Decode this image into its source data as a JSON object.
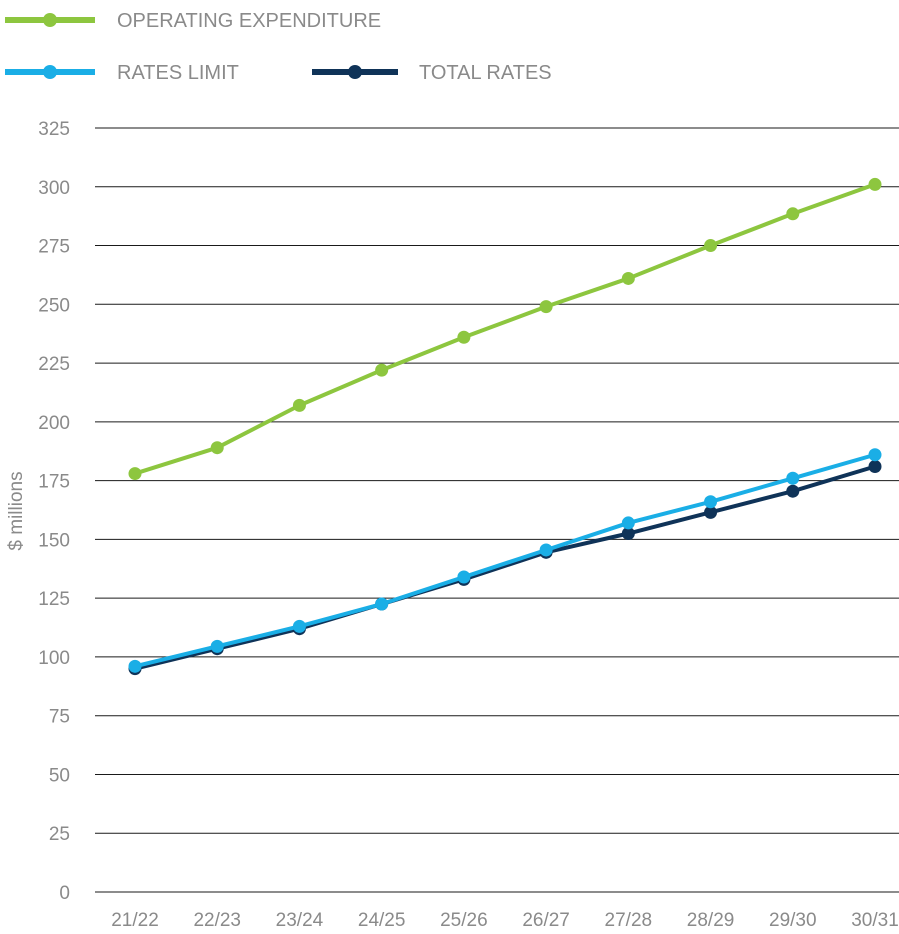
{
  "chart_data": {
    "type": "line",
    "categories": [
      "21/22",
      "22/23",
      "23/24",
      "24/25",
      "25/26",
      "26/27",
      "27/28",
      "28/29",
      "29/30",
      "30/31"
    ],
    "ylabel": "$ millions",
    "ylim": [
      0,
      325
    ],
    "yticks": [
      0,
      25,
      50,
      75,
      100,
      125,
      150,
      175,
      200,
      225,
      250,
      275,
      300,
      325
    ],
    "grid": true,
    "legend_position": "top-left",
    "series": [
      {
        "name": "OPERATING EXPENDITURE",
        "color": "#8dc63f",
        "values": [
          178,
          189,
          207,
          222,
          236,
          249,
          261,
          275,
          288.5,
          301
        ]
      },
      {
        "name": "RATES LIMIT",
        "color": "#1aaee6",
        "values": [
          96,
          104.5,
          113,
          122.5,
          134,
          145.5,
          157,
          166,
          176,
          186
        ]
      },
      {
        "name": "TOTAL RATES",
        "color": "#0f3358",
        "values": [
          95,
          103.5,
          112,
          122.5,
          133,
          144.5,
          152.5,
          161.5,
          170.5,
          181
        ]
      }
    ]
  }
}
